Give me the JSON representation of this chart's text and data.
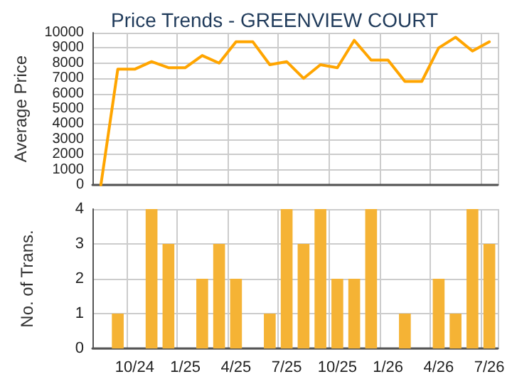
{
  "chart_data": [
    {
      "type": "line",
      "title": "Price Trends - GREENVIEW COURT",
      "ylabel": "Average Price",
      "categories": [
        null,
        null,
        null,
        null,
        null,
        null,
        null,
        null,
        null,
        null,
        null,
        null,
        null,
        null,
        null,
        null,
        null,
        null,
        null,
        null,
        null,
        null,
        null,
        null
      ],
      "series": [
        {
          "color": "#ffa500",
          "line_style": "solid",
          "values": [
            0,
            7600,
            7600,
            8100,
            7700,
            7700,
            8500,
            8000,
            9400,
            9400,
            7900,
            8100,
            7000,
            7900,
            7700,
            9500,
            8200,
            8200,
            6800,
            6800,
            9000,
            9700,
            8800,
            9400
          ]
        }
      ],
      "ylim": [
        0,
        10000
      ],
      "yticks": [
        0,
        1000,
        2000,
        3000,
        4000,
        5000,
        6000,
        7000,
        8000,
        9000,
        10000
      ],
      "grid": true,
      "tick_labels": "y",
      "marker": "none"
    },
    {
      "type": "bar",
      "ylabel": "No. of Trans.",
      "categories": [
        null,
        null,
        "10/24",
        null,
        null,
        "1/25",
        null,
        null,
        "4/25",
        null,
        null,
        "7/25",
        null,
        null,
        "10/25",
        null,
        null,
        "1/26",
        null,
        null,
        "4/26",
        null,
        null,
        "7/26"
      ],
      "values": [
        0,
        1,
        0,
        4,
        3,
        0,
        2,
        3,
        2,
        0,
        1,
        4,
        3,
        4,
        2,
        2,
        4,
        0,
        1,
        0,
        2,
        1,
        4,
        3
      ],
      "color": "#f5b335",
      "ylim": [
        0,
        4
      ],
      "yticks": [
        0,
        1,
        2,
        3,
        4
      ],
      "grid": true
    }
  ]
}
